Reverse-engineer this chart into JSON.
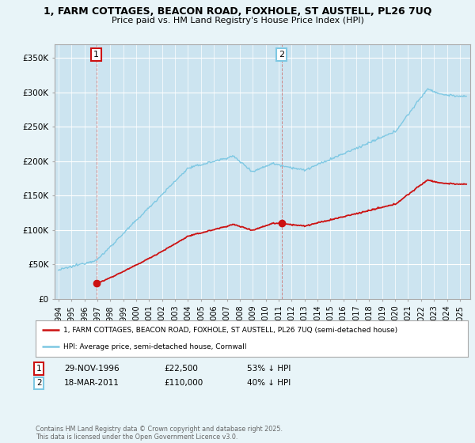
{
  "title1": "1, FARM COTTAGES, BEACON ROAD, FOXHOLE, ST AUSTELL, PL26 7UQ",
  "title2": "Price paid vs. HM Land Registry's House Price Index (HPI)",
  "bg_color": "#e8f4f8",
  "plot_bg": "#cce4f0",
  "hpi_color": "#7ec8e3",
  "price_color": "#cc1111",
  "sale1_date": 1996.92,
  "sale1_price": 22500,
  "sale2_date": 2011.22,
  "sale2_price": 110000,
  "legend_line1": "1, FARM COTTAGES, BEACON ROAD, FOXHOLE, ST AUSTELL, PL26 7UQ (semi-detached house)",
  "legend_line2": "HPI: Average price, semi-detached house, Cornwall",
  "annotation1_text": "29-NOV-1996          £22,500          53% ↓ HPI",
  "annotation2_text": "18-MAR-2011          £110,000          40% ↓ HPI",
  "footer": "Contains HM Land Registry data © Crown copyright and database right 2025.\nThis data is licensed under the Open Government Licence v3.0.",
  "ylim": [
    0,
    370000
  ],
  "yticks": [
    0,
    50000,
    100000,
    150000,
    200000,
    250000,
    300000,
    350000
  ],
  "ytick_labels": [
    "£0",
    "£50K",
    "£100K",
    "£150K",
    "£200K",
    "£250K",
    "£300K",
    "£350K"
  ],
  "xlim_start": 1993.7,
  "xlim_end": 2025.8
}
